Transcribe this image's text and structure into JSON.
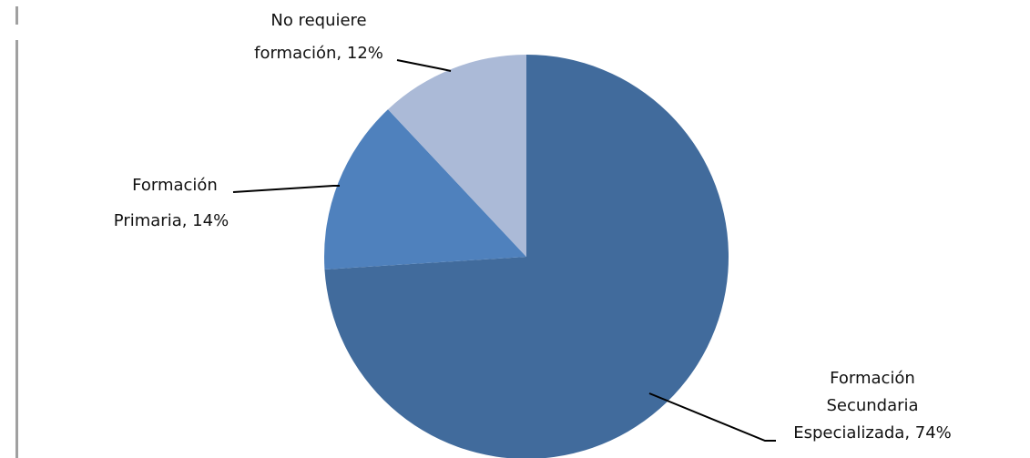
{
  "chart_data": {
    "type": "pie",
    "title": "",
    "slices": [
      {
        "label": "Formación Secundaria Especializada",
        "value": 74,
        "display": "74%",
        "color": "#416b9c"
      },
      {
        "label": "Formación Primaria",
        "value": 14,
        "display": "14%",
        "color": "#4f81bd"
      },
      {
        "label": "No requiere formación",
        "value": 12,
        "display": "12%",
        "color": "#abbad7"
      }
    ],
    "label_text": {
      "secundaria": [
        "Formación",
        "Secundaria",
        "Especializada, 74%"
      ],
      "primaria": [
        "Formación",
        "Primaria, 14%"
      ],
      "no_requiere": [
        "No requiere",
        "formación, 12%"
      ]
    },
    "legend": "none"
  }
}
